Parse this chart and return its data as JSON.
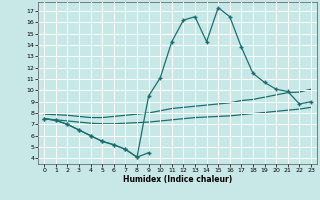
{
  "xlabel": "Humidex (Indice chaleur)",
  "xlim": [
    -0.5,
    23.5
  ],
  "ylim": [
    3.5,
    17.8
  ],
  "yticks": [
    4,
    5,
    6,
    7,
    8,
    9,
    10,
    11,
    12,
    13,
    14,
    15,
    16,
    17
  ],
  "xticks": [
    0,
    1,
    2,
    3,
    4,
    5,
    6,
    7,
    8,
    9,
    10,
    11,
    12,
    13,
    14,
    15,
    16,
    17,
    18,
    19,
    20,
    21,
    22,
    23
  ],
  "bg_color": "#c8e8e8",
  "grid_color": "#ffffff",
  "line_color": "#1a7070",
  "peak_curve_x": [
    0,
    1,
    2,
    3,
    4,
    5,
    6,
    7,
    8,
    9,
    10,
    11,
    12,
    13,
    14,
    15,
    16,
    17,
    18,
    19,
    20,
    21,
    22,
    23
  ],
  "peak_curve_y": [
    7.5,
    7.35,
    7.0,
    6.5,
    6.0,
    5.5,
    5.2,
    4.8,
    4.1,
    9.5,
    11.1,
    14.3,
    16.2,
    16.5,
    14.3,
    17.3,
    16.5,
    13.8,
    11.5,
    10.7,
    10.1,
    9.9,
    8.8,
    9.0
  ],
  "upper_curve_x": [
    0,
    2,
    3,
    4,
    5,
    6,
    7,
    8,
    9,
    10,
    11,
    12,
    13,
    14,
    15,
    16,
    17,
    18,
    19,
    20,
    21,
    22,
    23
  ],
  "upper_curve_y": [
    7.9,
    7.8,
    7.7,
    7.6,
    7.6,
    7.7,
    7.8,
    7.9,
    8.0,
    8.2,
    8.4,
    8.5,
    8.6,
    8.7,
    8.8,
    8.9,
    9.1,
    9.2,
    9.4,
    9.6,
    9.8,
    9.85,
    10.1
  ],
  "lower_curve_x": [
    0,
    2,
    3,
    4,
    5,
    6,
    7,
    8,
    9,
    10,
    11,
    12,
    13,
    14,
    15,
    16,
    17,
    18,
    19,
    20,
    21,
    22,
    23
  ],
  "lower_curve_y": [
    7.5,
    7.3,
    7.2,
    7.1,
    7.05,
    7.05,
    7.1,
    7.15,
    7.2,
    7.3,
    7.4,
    7.5,
    7.6,
    7.65,
    7.7,
    7.75,
    7.85,
    7.95,
    8.05,
    8.15,
    8.25,
    8.35,
    8.5
  ],
  "bottom_curve_x": [
    0,
    1,
    2,
    3,
    4,
    5,
    6,
    7,
    8,
    9
  ],
  "bottom_curve_y": [
    7.5,
    7.35,
    7.0,
    6.5,
    6.0,
    5.5,
    5.2,
    4.8,
    4.1,
    4.5
  ]
}
